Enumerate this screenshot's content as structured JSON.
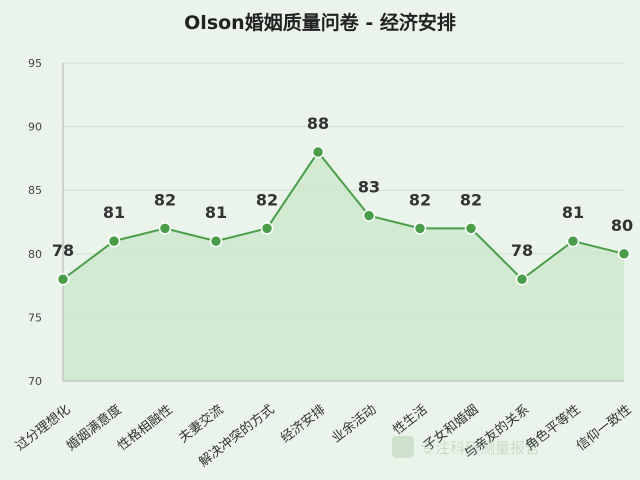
{
  "chart_data": {
    "type": "area",
    "title": "Olson婚姻质量问卷 - 经济安排",
    "categories": [
      "过分理想化",
      "婚姻满意度",
      "性格相融性",
      "夫妻交流",
      "解决冲突的方式",
      "经济安排",
      "业余活动",
      "性生活",
      "子女和婚姻",
      "与亲友的关系",
      "角色平等性",
      "信仰一致性"
    ],
    "series": [
      {
        "values": [
          78,
          81,
          82,
          81,
          82,
          88,
          83,
          82,
          82,
          78,
          81,
          80
        ]
      }
    ],
    "ylim": [
      70,
      95
    ],
    "yticks": [
      70,
      75,
      80,
      85,
      90,
      95
    ],
    "grid": true,
    "colors": {
      "line": "#4a9e4a",
      "fill": "#c9e6c9",
      "marker": "#4a9e4a"
    }
  },
  "watermark": "专注科研测量报告"
}
